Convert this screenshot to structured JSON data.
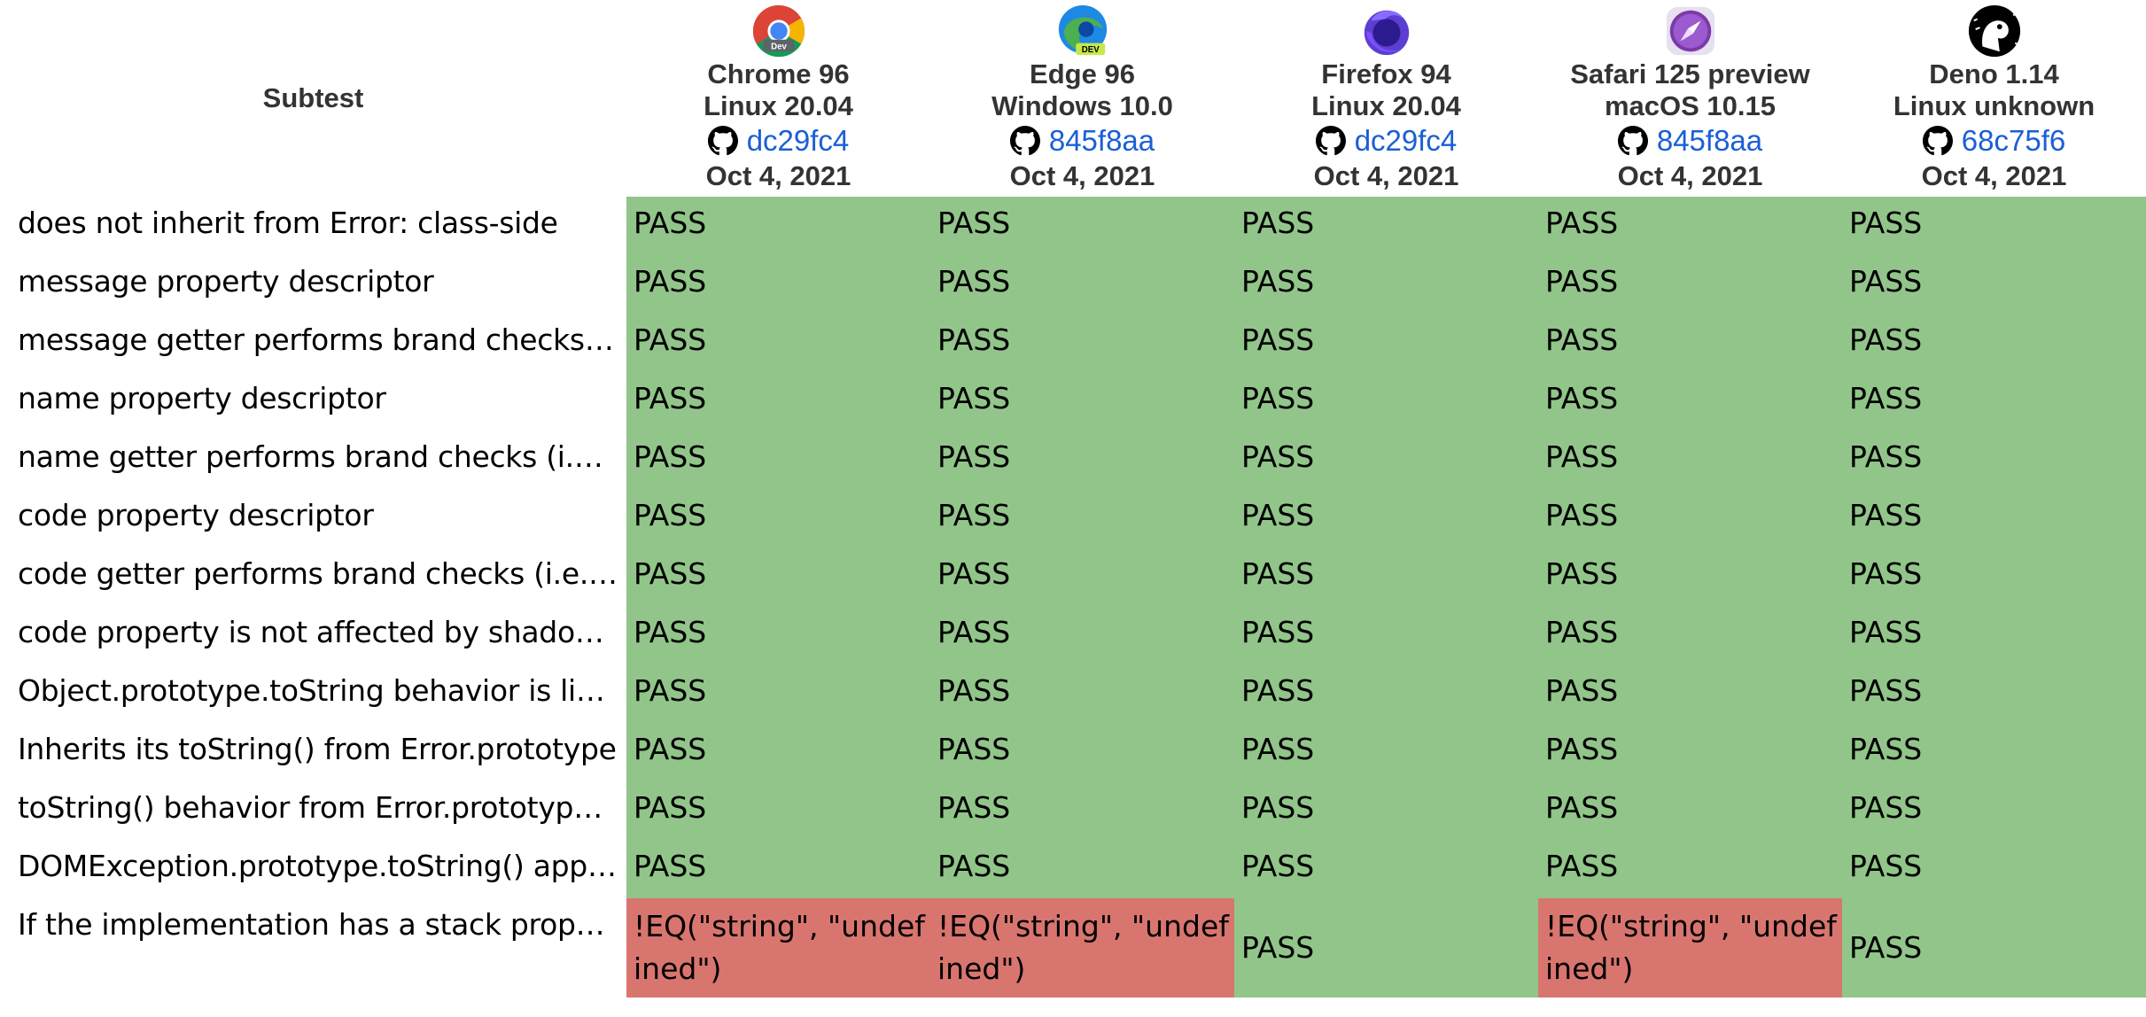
{
  "table": {
    "subtest_header": "Subtest",
    "browsers": [
      {
        "name": "Chrome 96",
        "os": "Linux 20.04",
        "revision": "dc29fc4",
        "date": "Oct 4, 2021",
        "icon": "chrome-dev-icon"
      },
      {
        "name": "Edge 96",
        "os": "Windows 10.0",
        "revision": "845f8aa",
        "date": "Oct 4, 2021",
        "icon": "edge-dev-icon"
      },
      {
        "name": "Firefox 94",
        "os": "Linux 20.04",
        "revision": "dc29fc4",
        "date": "Oct 4, 2021",
        "icon": "firefox-nightly-icon"
      },
      {
        "name": "Safari 125 preview",
        "os": "macOS 10.15",
        "revision": "845f8aa",
        "date": "Oct 4, 2021",
        "icon": "safari-preview-icon"
      },
      {
        "name": "Deno 1.14",
        "os": "Linux unknown",
        "revision": "68c75f6",
        "date": "Oct 4, 2021",
        "icon": "deno-icon"
      }
    ],
    "rows": [
      {
        "label": "does not inherit from Error: class-side",
        "results": [
          {
            "text": "PASS",
            "status": "pass"
          },
          {
            "text": "PASS",
            "status": "pass"
          },
          {
            "text": "PASS",
            "status": "pass"
          },
          {
            "text": "PASS",
            "status": "pass"
          },
          {
            "text": "PASS",
            "status": "pass"
          }
        ]
      },
      {
        "label": "message property descriptor",
        "results": [
          {
            "text": "PASS",
            "status": "pass"
          },
          {
            "text": "PASS",
            "status": "pass"
          },
          {
            "text": "PASS",
            "status": "pass"
          },
          {
            "text": "PASS",
            "status": "pass"
          },
          {
            "text": "PASS",
            "status": "pass"
          }
        ]
      },
      {
        "label": "message getter performs brand checks (i.…",
        "results": [
          {
            "text": "PASS",
            "status": "pass"
          },
          {
            "text": "PASS",
            "status": "pass"
          },
          {
            "text": "PASS",
            "status": "pass"
          },
          {
            "text": "PASS",
            "status": "pass"
          },
          {
            "text": "PASS",
            "status": "pass"
          }
        ]
      },
      {
        "label": "name property descriptor",
        "results": [
          {
            "text": "PASS",
            "status": "pass"
          },
          {
            "text": "PASS",
            "status": "pass"
          },
          {
            "text": "PASS",
            "status": "pass"
          },
          {
            "text": "PASS",
            "status": "pass"
          },
          {
            "text": "PASS",
            "status": "pass"
          }
        ]
      },
      {
        "label": "name getter performs brand checks (i.e. is…",
        "results": [
          {
            "text": "PASS",
            "status": "pass"
          },
          {
            "text": "PASS",
            "status": "pass"
          },
          {
            "text": "PASS",
            "status": "pass"
          },
          {
            "text": "PASS",
            "status": "pass"
          },
          {
            "text": "PASS",
            "status": "pass"
          }
        ]
      },
      {
        "label": "code property descriptor",
        "results": [
          {
            "text": "PASS",
            "status": "pass"
          },
          {
            "text": "PASS",
            "status": "pass"
          },
          {
            "text": "PASS",
            "status": "pass"
          },
          {
            "text": "PASS",
            "status": "pass"
          },
          {
            "text": "PASS",
            "status": "pass"
          }
        ]
      },
      {
        "label": "code getter performs brand checks (i.e. is …",
        "results": [
          {
            "text": "PASS",
            "status": "pass"
          },
          {
            "text": "PASS",
            "status": "pass"
          },
          {
            "text": "PASS",
            "status": "pass"
          },
          {
            "text": "PASS",
            "status": "pass"
          },
          {
            "text": "PASS",
            "status": "pass"
          }
        ]
      },
      {
        "label": "code property is not affected by shadowin…",
        "results": [
          {
            "text": "PASS",
            "status": "pass"
          },
          {
            "text": "PASS",
            "status": "pass"
          },
          {
            "text": "PASS",
            "status": "pass"
          },
          {
            "text": "PASS",
            "status": "pass"
          },
          {
            "text": "PASS",
            "status": "pass"
          }
        ]
      },
      {
        "label": "Object.prototype.toString behavior is like …",
        "results": [
          {
            "text": "PASS",
            "status": "pass"
          },
          {
            "text": "PASS",
            "status": "pass"
          },
          {
            "text": "PASS",
            "status": "pass"
          },
          {
            "text": "PASS",
            "status": "pass"
          },
          {
            "text": "PASS",
            "status": "pass"
          }
        ]
      },
      {
        "label": "Inherits its toString() from Error.prototype",
        "results": [
          {
            "text": "PASS",
            "status": "pass"
          },
          {
            "text": "PASS",
            "status": "pass"
          },
          {
            "text": "PASS",
            "status": "pass"
          },
          {
            "text": "PASS",
            "status": "pass"
          },
          {
            "text": "PASS",
            "status": "pass"
          }
        ]
      },
      {
        "label": "toString() behavior from Error.prototype a…",
        "results": [
          {
            "text": "PASS",
            "status": "pass"
          },
          {
            "text": "PASS",
            "status": "pass"
          },
          {
            "text": "PASS",
            "status": "pass"
          },
          {
            "text": "PASS",
            "status": "pass"
          },
          {
            "text": "PASS",
            "status": "pass"
          }
        ]
      },
      {
        "label": "DOMException.prototype.toString() applie…",
        "results": [
          {
            "text": "PASS",
            "status": "pass"
          },
          {
            "text": "PASS",
            "status": "pass"
          },
          {
            "text": "PASS",
            "status": "pass"
          },
          {
            "text": "PASS",
            "status": "pass"
          },
          {
            "text": "PASS",
            "status": "pass"
          }
        ]
      },
      {
        "label": "If the implementation has a stack property…",
        "results": [
          {
            "text": "!EQ(\"string\", \"undefined\")",
            "status": "fail"
          },
          {
            "text": "!EQ(\"string\", \"undefined\")",
            "status": "fail"
          },
          {
            "text": "PASS",
            "status": "pass"
          },
          {
            "text": "!EQ(\"string\", \"undefined\")",
            "status": "fail"
          },
          {
            "text": "PASS",
            "status": "pass"
          }
        ]
      }
    ]
  },
  "colors": {
    "pass": "#92c58a",
    "fail": "#d9756f",
    "link": "#1a5fd6"
  }
}
